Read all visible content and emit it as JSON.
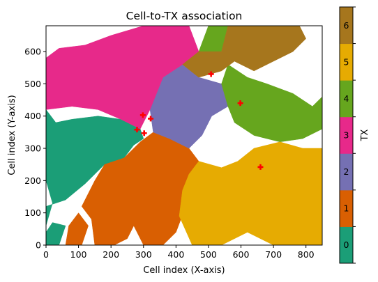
{
  "chart_data": {
    "type": "heatmap",
    "title": "Cell-to-TX association",
    "xlabel": "Cell index (X-axis)",
    "ylabel": "Cell index (Y-axis)",
    "xlim": [
      0,
      850
    ],
    "ylim": [
      0,
      680
    ],
    "xticks": [
      0,
      100,
      200,
      300,
      400,
      500,
      600,
      700,
      800
    ],
    "yticks": [
      0,
      100,
      200,
      300,
      400,
      500,
      600
    ],
    "grid": false,
    "colorbar": {
      "label": "TX",
      "levels": [
        {
          "value": 0,
          "label": "0",
          "color": "#1b9e77"
        },
        {
          "value": 1,
          "label": "1",
          "color": "#d95f02"
        },
        {
          "value": 2,
          "label": "2",
          "color": "#7570b3"
        },
        {
          "value": 3,
          "label": "3",
          "color": "#e7298a"
        },
        {
          "value": 4,
          "label": "4",
          "color": "#66a61e"
        },
        {
          "value": 5,
          "label": "5",
          "color": "#e6ab02"
        },
        {
          "value": 6,
          "label": "6",
          "color": "#a6761d"
        }
      ]
    },
    "tx_marker_color": "#ff0000",
    "transmitters": [
      {
        "x": 280,
        "y": 358
      },
      {
        "x": 298,
        "y": 403
      },
      {
        "x": 302,
        "y": 347
      },
      {
        "x": 322,
        "y": 392
      },
      {
        "x": 508,
        "y": 530
      },
      {
        "x": 598,
        "y": 440
      },
      {
        "x": 660,
        "y": 242
      }
    ],
    "regions": [
      {
        "tx": 0,
        "polygon": [
          [
            0,
            60
          ],
          [
            20,
            130
          ],
          [
            0,
            200
          ],
          [
            0,
            420
          ],
          [
            30,
            380
          ],
          [
            80,
            390
          ],
          [
            160,
            400
          ],
          [
            230,
            390
          ],
          [
            290,
            360
          ],
          [
            300,
            330
          ],
          [
            270,
            310
          ],
          [
            240,
            270
          ],
          [
            180,
            250
          ],
          [
            120,
            190
          ],
          [
            60,
            140
          ],
          [
            0,
            120
          ]
        ]
      },
      {
        "tx": 0,
        "polygon": [
          [
            0,
            0
          ],
          [
            40,
            0
          ],
          [
            60,
            60
          ],
          [
            20,
            70
          ],
          [
            0,
            40
          ]
        ]
      },
      {
        "tx": 1,
        "polygon": [
          [
            180,
            250
          ],
          [
            240,
            270
          ],
          [
            290,
            320
          ],
          [
            330,
            350
          ],
          [
            380,
            330
          ],
          [
            440,
            300
          ],
          [
            470,
            260
          ],
          [
            440,
            220
          ],
          [
            420,
            170
          ],
          [
            430,
            120
          ],
          [
            400,
            40
          ],
          [
            360,
            0
          ],
          [
            300,
            0
          ],
          [
            270,
            60
          ],
          [
            250,
            20
          ],
          [
            210,
            0
          ],
          [
            150,
            0
          ],
          [
            140,
            80
          ],
          [
            110,
            120
          ],
          [
            150,
            200
          ]
        ]
      },
      {
        "tx": 1,
        "polygon": [
          [
            60,
            0
          ],
          [
            110,
            0
          ],
          [
            130,
            60
          ],
          [
            100,
            100
          ],
          [
            70,
            60
          ]
        ]
      },
      {
        "tx": 2,
        "polygon": [
          [
            330,
            350
          ],
          [
            320,
            420
          ],
          [
            360,
            520
          ],
          [
            420,
            560
          ],
          [
            470,
            520
          ],
          [
            540,
            500
          ],
          [
            560,
            430
          ],
          [
            510,
            400
          ],
          [
            480,
            340
          ],
          [
            440,
            300
          ],
          [
            380,
            330
          ]
        ]
      },
      {
        "tx": 3,
        "polygon": [
          [
            0,
            420
          ],
          [
            80,
            430
          ],
          [
            160,
            420
          ],
          [
            230,
            390
          ],
          [
            290,
            360
          ],
          [
            320,
            420
          ],
          [
            360,
            520
          ],
          [
            420,
            560
          ],
          [
            470,
            600
          ],
          [
            440,
            680
          ],
          [
            300,
            680
          ],
          [
            200,
            650
          ],
          [
            120,
            620
          ],
          [
            40,
            610
          ],
          [
            0,
            580
          ]
        ]
      },
      {
        "tx": 4,
        "polygon": [
          [
            560,
            430
          ],
          [
            540,
            500
          ],
          [
            560,
            560
          ],
          [
            620,
            520
          ],
          [
            680,
            500
          ],
          [
            760,
            470
          ],
          [
            820,
            430
          ],
          [
            850,
            460
          ],
          [
            850,
            360
          ],
          [
            790,
            330
          ],
          [
            720,
            320
          ],
          [
            640,
            340
          ],
          [
            580,
            380
          ]
        ]
      },
      {
        "tx": 4,
        "polygon": [
          [
            470,
            600
          ],
          [
            500,
            680
          ],
          [
            560,
            680
          ],
          [
            540,
            600
          ]
        ]
      },
      {
        "tx": 5,
        "polygon": [
          [
            440,
            220
          ],
          [
            470,
            260
          ],
          [
            540,
            240
          ],
          [
            590,
            260
          ],
          [
            640,
            300
          ],
          [
            720,
            320
          ],
          [
            790,
            300
          ],
          [
            850,
            300
          ],
          [
            850,
            0
          ],
          [
            700,
            0
          ],
          [
            620,
            40
          ],
          [
            540,
            0
          ],
          [
            450,
            0
          ],
          [
            410,
            90
          ],
          [
            420,
            170
          ]
        ]
      },
      {
        "tx": 6,
        "polygon": [
          [
            420,
            560
          ],
          [
            470,
            600
          ],
          [
            540,
            600
          ],
          [
            560,
            680
          ],
          [
            780,
            680
          ],
          [
            800,
            640
          ],
          [
            760,
            600
          ],
          [
            700,
            570
          ],
          [
            640,
            540
          ],
          [
            580,
            570
          ],
          [
            540,
            540
          ],
          [
            470,
            520
          ]
        ]
      }
    ]
  }
}
